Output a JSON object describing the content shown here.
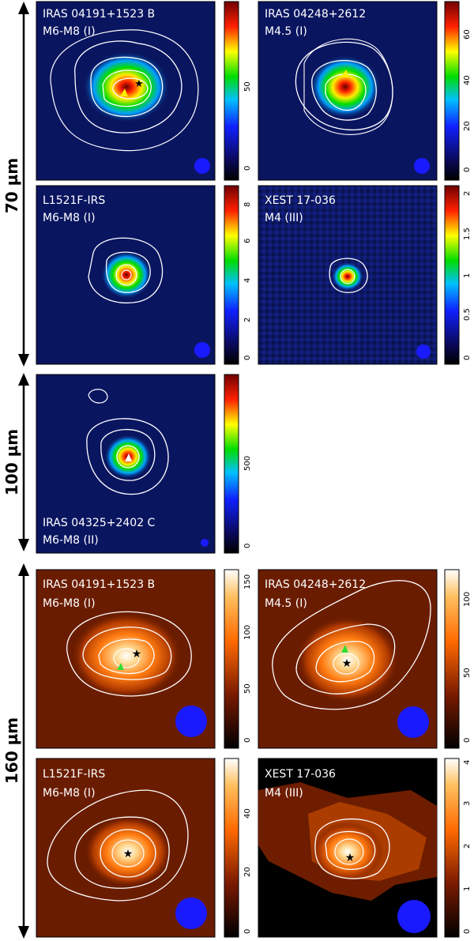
{
  "figure": {
    "bands": [
      {
        "id": "b70",
        "label": "70 µm"
      },
      {
        "id": "b100",
        "label": "100 µm"
      },
      {
        "id": "b160",
        "label": "160 µm"
      }
    ],
    "panels": [
      {
        "id": "p1",
        "band": "70",
        "name": "IRAS 04191+1523 B",
        "spt": "M6-M8 (I)",
        "ticks": [
          "0",
          "50"
        ],
        "cmap": "rainbow"
      },
      {
        "id": "p2",
        "band": "70",
        "name": "IRAS 04248+2612",
        "spt": "M4.5 (I)",
        "ticks": [
          "0",
          "20",
          "40",
          "60"
        ],
        "cmap": "rainbow"
      },
      {
        "id": "p3",
        "band": "70",
        "name": "L1521F-IRS",
        "spt": "M6-M8 (I)",
        "ticks": [
          "0",
          "2",
          "4",
          "6",
          "8"
        ],
        "cmap": "rainbow"
      },
      {
        "id": "p4",
        "band": "70",
        "name": "XEST 17-036",
        "spt": "M4 (III)",
        "ticks": [
          "0",
          "0.5",
          "1",
          "1.5",
          "2"
        ],
        "cmap": "rainbow"
      },
      {
        "id": "p5",
        "band": "100",
        "name": "IRAS 04325+2402 C",
        "spt": "M6-M8 (II)",
        "ticks": [
          "0",
          "500"
        ],
        "cmap": "rainbow"
      },
      {
        "id": "p6",
        "band": "160",
        "name": "IRAS 04191+1523 B",
        "spt": "M6-M8 (I)",
        "ticks": [
          "0",
          "50",
          "100",
          "150"
        ],
        "cmap": "heat"
      },
      {
        "id": "p7",
        "band": "160",
        "name": "IRAS 04248+2612",
        "spt": "M4.5 (I)",
        "ticks": [
          "0",
          "50",
          "100"
        ],
        "cmap": "heat"
      },
      {
        "id": "p8",
        "band": "160",
        "name": "L1521F-IRS",
        "spt": "M6-M8 (I)",
        "ticks": [
          "0",
          "20",
          "40"
        ],
        "cmap": "heat"
      },
      {
        "id": "p9",
        "band": "160",
        "name": "XEST 17-036",
        "spt": "M4 (III)",
        "ticks": [
          "0",
          "1",
          "2",
          "3",
          "4"
        ],
        "cmap": "heat"
      }
    ],
    "colors": {
      "beam": "#1a1aff",
      "star": "#000000",
      "marker": "#33dd33",
      "contour": "#ffffff",
      "bg70": "#0a1560",
      "bg160": "#6a1c00"
    }
  }
}
